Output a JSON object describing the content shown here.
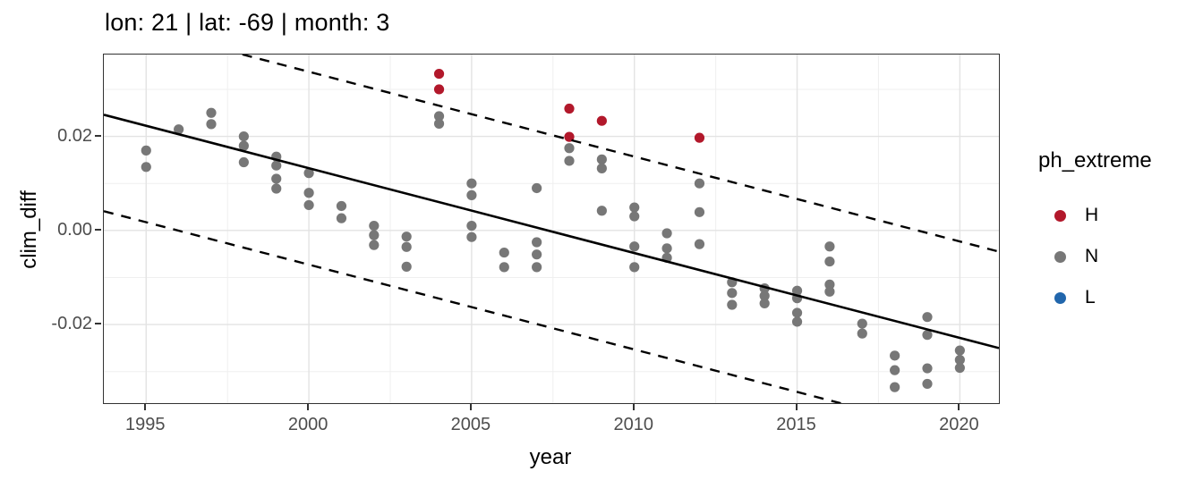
{
  "title": "lon: 21 | lat: -69 | month: 3",
  "axes": {
    "x": {
      "label": "year",
      "ticks": [
        "1995",
        "2000",
        "2005",
        "2010",
        "2015",
        "2020"
      ],
      "tick_values": [
        1995,
        2000,
        2005,
        2010,
        2015,
        2020
      ],
      "minor_gridlines": [
        1997.5,
        2002.5,
        2007.5,
        2012.5,
        2017.5
      ]
    },
    "y": {
      "label": "clim_diff",
      "ticks": [
        "0.02",
        "0.00",
        "-0.02"
      ],
      "tick_values": [
        0.02,
        0.0,
        -0.02
      ],
      "minor_gridlines": [
        0.03,
        0.01,
        -0.01,
        -0.03
      ]
    }
  },
  "legend": {
    "title": "ph_extreme",
    "items": [
      {
        "label": "H",
        "color": "#B2182B"
      },
      {
        "label": "N",
        "color": "#777777"
      },
      {
        "label": "L",
        "color": "#2166AC"
      }
    ]
  },
  "colors": {
    "high_extreme": "#B2182B",
    "normal": "#777777",
    "low_extreme": "#2166AC",
    "axis_text": "#4d4d4d",
    "panel_border": "#333333",
    "grid_major": "#e3e3e3",
    "grid_minor": "#efefef",
    "trend_line": "#000000"
  },
  "chart_data": {
    "type": "scatter",
    "title": "lon: 21 | lat: -69 | month: 3",
    "xlabel": "year",
    "ylabel": "clim_diff",
    "xlim": [
      1993.7,
      2021.2
    ],
    "ylim": [
      -0.0367,
      0.0374
    ],
    "grid": true,
    "legend_position": "right",
    "series": [
      {
        "name": "H",
        "color": "#B2182B",
        "points": [
          [
            2004,
            0.0333
          ],
          [
            2004,
            0.03
          ],
          [
            2008,
            0.0259
          ],
          [
            2008,
            0.0199
          ],
          [
            2009,
            0.0233
          ],
          [
            2012,
            0.0197
          ]
        ]
      },
      {
        "name": "N",
        "color": "#777777",
        "points": [
          [
            1995,
            0.017
          ],
          [
            1995,
            0.0135
          ],
          [
            1996,
            0.0215
          ],
          [
            1997,
            0.025
          ],
          [
            1997,
            0.0226
          ],
          [
            1998,
            0.02
          ],
          [
            1998,
            0.018
          ],
          [
            1998,
            0.0145
          ],
          [
            1999,
            0.0157
          ],
          [
            1999,
            0.0138
          ],
          [
            1999,
            0.011
          ],
          [
            1999,
            0.0089
          ],
          [
            2000,
            0.0122
          ],
          [
            2000,
            0.008
          ],
          [
            2000,
            0.0054
          ],
          [
            2001,
            0.0052
          ],
          [
            2001,
            0.0026
          ],
          [
            2002,
            0.001
          ],
          [
            2002,
            -0.001
          ],
          [
            2002,
            -0.0031
          ],
          [
            2003,
            -0.0013
          ],
          [
            2003,
            -0.0035
          ],
          [
            2003,
            -0.0077
          ],
          [
            2004,
            0.0243
          ],
          [
            2004,
            0.0227
          ],
          [
            2005,
            0.01
          ],
          [
            2005,
            0.0075
          ],
          [
            2005,
            0.001
          ],
          [
            2005,
            -0.0014
          ],
          [
            2006,
            -0.0047
          ],
          [
            2006,
            -0.0078
          ],
          [
            2007,
            0.009
          ],
          [
            2007,
            -0.0025
          ],
          [
            2007,
            -0.0051
          ],
          [
            2007,
            -0.0078
          ],
          [
            2008,
            0.0175
          ],
          [
            2008,
            0.0148
          ],
          [
            2009,
            0.0151
          ],
          [
            2009,
            0.0132
          ],
          [
            2009,
            0.0042
          ],
          [
            2010,
            0.0049
          ],
          [
            2010,
            0.003
          ],
          [
            2010,
            -0.0034
          ],
          [
            2010,
            -0.0078
          ],
          [
            2011,
            -0.0006
          ],
          [
            2011,
            -0.0038
          ],
          [
            2011,
            -0.0058
          ],
          [
            2012,
            0.01
          ],
          [
            2012,
            0.0039
          ],
          [
            2012,
            -0.0029
          ],
          [
            2013,
            -0.011
          ],
          [
            2013,
            -0.0133
          ],
          [
            2013,
            -0.0158
          ],
          [
            2014,
            -0.0123
          ],
          [
            2014,
            -0.0139
          ],
          [
            2014,
            -0.0155
          ],
          [
            2015,
            -0.0128
          ],
          [
            2015,
            -0.0144
          ],
          [
            2015,
            -0.0175
          ],
          [
            2015,
            -0.0194
          ],
          [
            2016,
            -0.0034
          ],
          [
            2016,
            -0.0066
          ],
          [
            2016,
            -0.0115
          ],
          [
            2016,
            -0.013
          ],
          [
            2017,
            -0.0198
          ],
          [
            2017,
            -0.0219
          ],
          [
            2018,
            -0.0266
          ],
          [
            2018,
            -0.0297
          ],
          [
            2018,
            -0.0333
          ],
          [
            2019,
            -0.0184
          ],
          [
            2019,
            -0.0222
          ],
          [
            2019,
            -0.0293
          ],
          [
            2019,
            -0.0326
          ],
          [
            2020,
            -0.0255
          ],
          [
            2020,
            -0.0275
          ],
          [
            2020,
            -0.0292
          ]
        ]
      },
      {
        "name": "L",
        "color": "#2166AC",
        "points": []
      }
    ],
    "trend_line": {
      "x": [
        1993.7,
        2021.2
      ],
      "y": [
        0.0246,
        -0.025
      ],
      "style": "solid"
    },
    "prediction_interval": {
      "offset": 0.0205,
      "style": "dashed"
    }
  }
}
